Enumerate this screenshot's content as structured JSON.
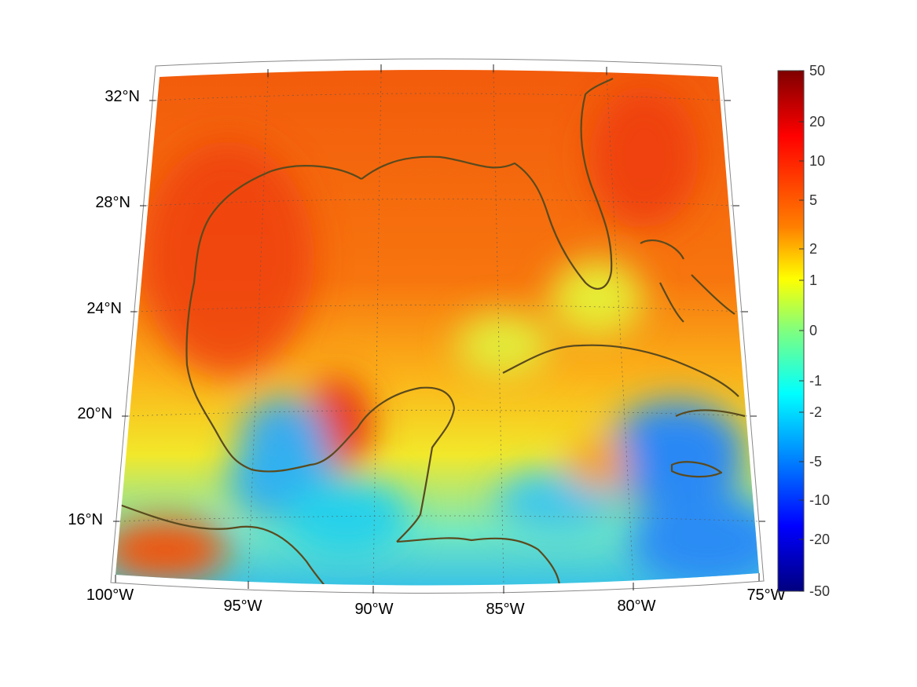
{
  "map": {
    "longitude_labels": [
      "100°W",
      "95°W",
      "90°W",
      "85°W",
      "80°W",
      "75°W"
    ],
    "latitude_labels": [
      "32°N",
      "28°N",
      "24°N",
      "20°N",
      "16°N"
    ],
    "extent": {
      "lon_min": -100,
      "lon_max": -75,
      "lat_min": 14,
      "lat_max": 33
    },
    "coastline_color": "#5a4a1e",
    "grid_lines": "dotted",
    "projection": "conic"
  },
  "colorbar": {
    "tick_labels": [
      "50",
      "20",
      "10",
      "5",
      "2",
      "1",
      "0",
      "-1",
      "-2",
      "-5",
      "-10",
      "-20",
      "-50"
    ],
    "colormap": "jet",
    "colors": [
      "#7f0000",
      "#ff0000",
      "#ff7f00",
      "#ffff00",
      "#7fff7f",
      "#00ffff",
      "#007fff",
      "#0000ff",
      "#00007f"
    ]
  }
}
